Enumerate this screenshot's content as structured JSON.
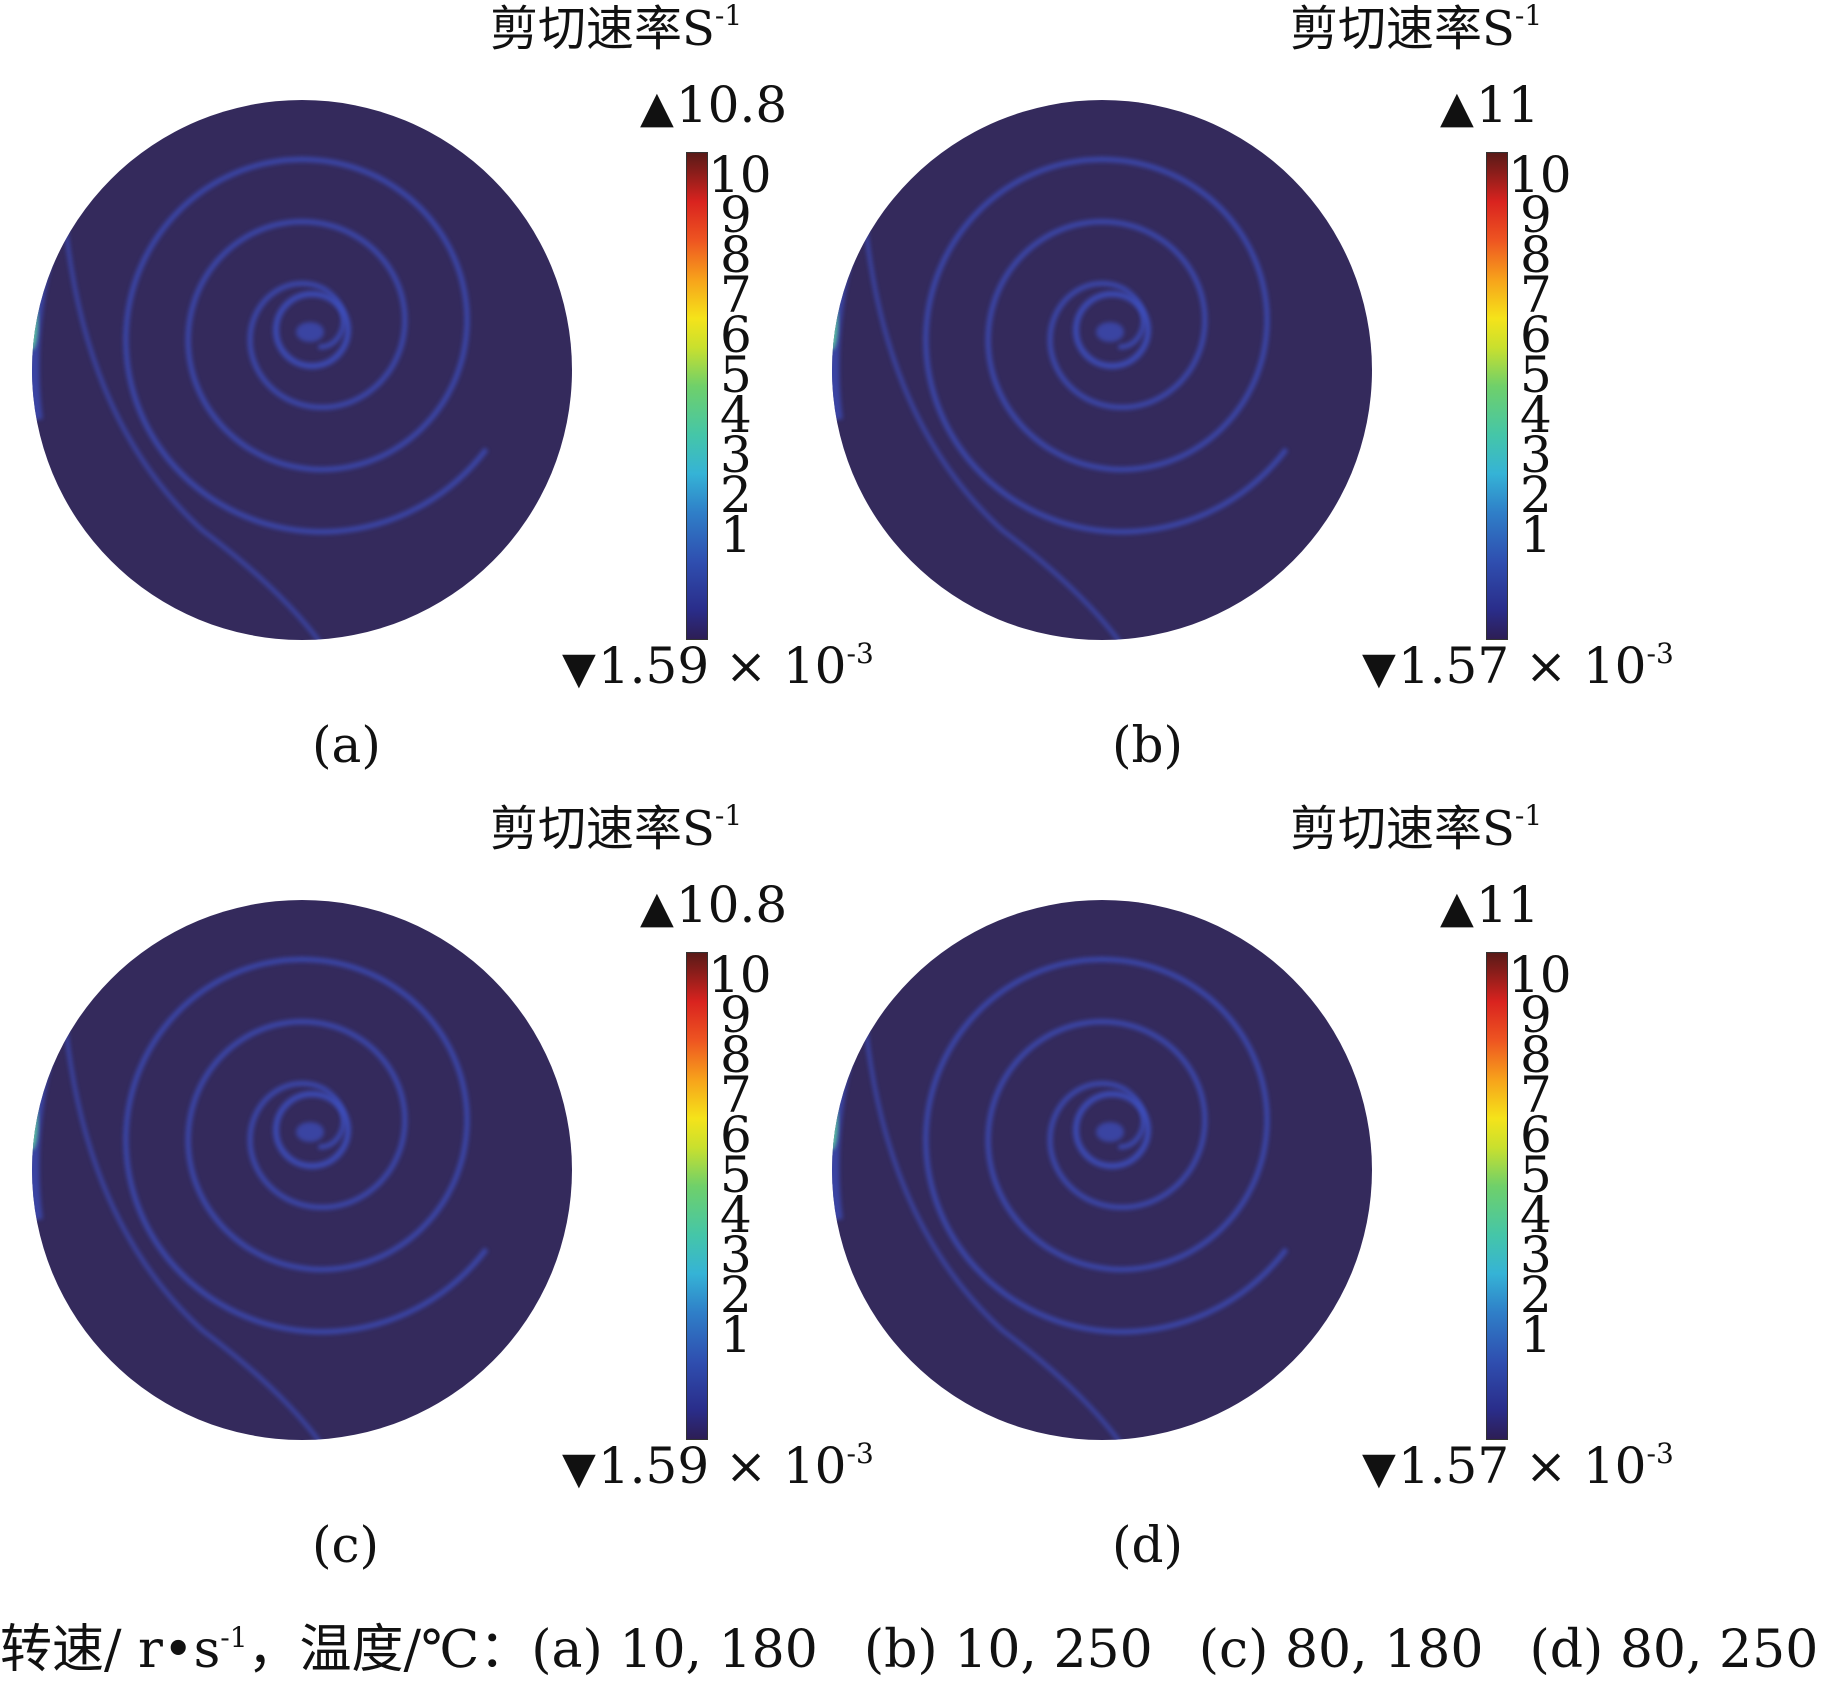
{
  "panels": [
    {
      "title": "剪切速率S",
      "title_sup": "-1",
      "max_label": "10.8",
      "min_label": "1.59 × 10",
      "min_sup": "-3",
      "panel_label": "(a)"
    },
    {
      "title": "剪切速率S",
      "title_sup": "-1",
      "max_label": "11",
      "min_label": "1.57 × 10",
      "min_sup": "-3",
      "panel_label": "(b)"
    },
    {
      "title": "剪切速率S",
      "title_sup": "-1",
      "max_label": "10.8",
      "min_label": "1.59 × 10",
      "min_sup": "-3",
      "panel_label": "(c)"
    },
    {
      "title": "剪切速率S",
      "title_sup": "-1",
      "max_label": "11",
      "min_label": "1.57 × 10",
      "min_sup": "-3",
      "panel_label": "(d)"
    }
  ],
  "colorbar_ticks": [
    "10",
    "9",
    "8",
    "7",
    "6",
    "5",
    "4",
    "3",
    "2",
    "1"
  ],
  "caption": {
    "prefix": "转速/ r•s",
    "prefix_sup": "-1",
    "mid": "，温度/℃：",
    "items": [
      "(a) 10, 180",
      "(b) 10, 250",
      "(c) 80, 180",
      "(d) 80, 250"
    ]
  },
  "colors": {
    "disc_background": "#342a5c",
    "spiral": "#3d4fc0",
    "edge_highlight": "#5fd0a0"
  }
}
